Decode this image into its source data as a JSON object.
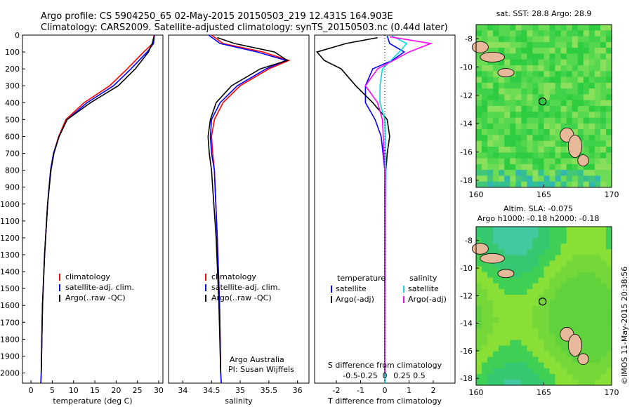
{
  "header": {
    "line1": "Argo profile: CS 5904250_65 02-May-2015 20150503_219 12.431S 164.903E",
    "line2": "Climatology: CARS2009. Satellite-adjusted climatology: synTS_20150503.nc (0.44d later)"
  },
  "depth_ticks": [
    "0",
    "100",
    "200",
    "300",
    "400",
    "500",
    "600",
    "700",
    "800",
    "900",
    "1000",
    "1100",
    "1200",
    "1300",
    "1400",
    "1500",
    "1600",
    "1700",
    "1800",
    "1900",
    "2000"
  ],
  "colors": {
    "climatology": "#ff0000",
    "satellite": "#0000ff",
    "argo": "#000000",
    "sal_sat": "#00e0e0",
    "sal_argo": "#ff00ff"
  },
  "chart_data": [
    {
      "type": "line",
      "id": "temperature",
      "xlabel": "temperature (deg C)",
      "xlim": [
        -2,
        31
      ],
      "ylim": [
        0,
        2060
      ],
      "x_ticks": [
        "0",
        "5",
        "10",
        "15",
        "20",
        "25",
        "30"
      ],
      "legend": [
        "climatology",
        "satellite-adj. clim.",
        "Argo(..raw -QC)"
      ],
      "series": [
        {
          "name": "climatology",
          "points": [
            [
              28.9,
              0
            ],
            [
              28.6,
              50
            ],
            [
              26.5,
              100
            ],
            [
              22.6,
              200
            ],
            [
              18.5,
              300
            ],
            [
              12.5,
              400
            ],
            [
              8.2,
              500
            ],
            [
              6.5,
              600
            ],
            [
              5.3,
              700
            ],
            [
              4.6,
              800
            ],
            [
              3.9,
              1000
            ],
            [
              3.2,
              1300
            ],
            [
              2.7,
              1600
            ],
            [
              2.4,
              2000
            ],
            [
              2.3,
              2060
            ]
          ]
        },
        {
          "name": "satellite-adj. clim.",
          "points": [
            [
              29.0,
              0
            ],
            [
              28.8,
              50
            ],
            [
              27.3,
              100
            ],
            [
              23.5,
              200
            ],
            [
              19.4,
              300
            ],
            [
              13.2,
              400
            ],
            [
              8.5,
              500
            ],
            [
              6.6,
              600
            ],
            [
              5.3,
              700
            ],
            [
              4.6,
              800
            ],
            [
              3.9,
              1000
            ],
            [
              3.2,
              1300
            ],
            [
              2.7,
              1600
            ],
            [
              2.4,
              2000
            ],
            [
              2.3,
              2060
            ]
          ]
        },
        {
          "name": "Argo(..raw -QC)",
          "points": [
            [
              28.9,
              8
            ],
            [
              28.5,
              50
            ],
            [
              27.6,
              100
            ],
            [
              24.5,
              200
            ],
            [
              20.5,
              300
            ],
            [
              14.0,
              400
            ],
            [
              8.5,
              500
            ],
            [
              6.6,
              600
            ],
            [
              5.4,
              700
            ],
            [
              4.7,
              800
            ],
            [
              3.9,
              1000
            ],
            [
              3.2,
              1300
            ],
            [
              2.7,
              1600
            ],
            [
              2.4,
              2000
            ]
          ]
        }
      ]
    },
    {
      "type": "line",
      "id": "salinity",
      "xlabel": "salinity",
      "xlim": [
        33.75,
        36.2
      ],
      "ylim": [
        0,
        2060
      ],
      "x_ticks": [
        "34",
        "34.5",
        "35",
        "35.5",
        "36"
      ],
      "legend": [
        "climatology",
        "satellite-adj. clim.",
        "Argo(..raw -QC)"
      ],
      "series": [
        {
          "name": "climatology",
          "points": [
            [
              34.5,
              0
            ],
            [
              34.7,
              50
            ],
            [
              35.4,
              100
            ],
            [
              35.85,
              150
            ],
            [
              35.5,
              200
            ],
            [
              35.0,
              300
            ],
            [
              34.7,
              400
            ],
            [
              34.55,
              500
            ],
            [
              34.5,
              600
            ],
            [
              34.52,
              700
            ],
            [
              34.55,
              800
            ],
            [
              34.6,
              1200
            ],
            [
              34.64,
              1600
            ],
            [
              34.66,
              2000
            ],
            [
              34.67,
              2060
            ]
          ]
        },
        {
          "name": "satellite-adj. clim.",
          "points": [
            [
              34.45,
              0
            ],
            [
              34.65,
              50
            ],
            [
              35.3,
              100
            ],
            [
              35.8,
              150
            ],
            [
              35.45,
              200
            ],
            [
              34.95,
              300
            ],
            [
              34.65,
              400
            ],
            [
              34.5,
              500
            ],
            [
              34.48,
              600
            ],
            [
              34.5,
              700
            ],
            [
              34.55,
              800
            ],
            [
              34.6,
              1200
            ],
            [
              34.64,
              1600
            ],
            [
              34.66,
              2000
            ],
            [
              34.67,
              2060
            ]
          ]
        },
        {
          "name": "Argo(..raw -QC)",
          "points": [
            [
              34.6,
              15
            ],
            [
              34.9,
              50
            ],
            [
              35.6,
              100
            ],
            [
              35.82,
              150
            ],
            [
              35.35,
              200
            ],
            [
              34.85,
              300
            ],
            [
              34.58,
              400
            ],
            [
              34.48,
              500
            ],
            [
              34.44,
              600
            ],
            [
              34.46,
              700
            ],
            [
              34.5,
              800
            ],
            [
              34.58,
              1200
            ],
            [
              34.63,
              1600
            ],
            [
              34.66,
              2000
            ]
          ]
        }
      ],
      "annotation": [
        "Argo Australia",
        "PI: Susan Wijffels"
      ]
    },
    {
      "type": "line",
      "id": "differences",
      "xlabel": "T difference from climatology",
      "xlabel_top": "S difference from climatology",
      "xlim": [
        -2.9,
        2.9
      ],
      "ylim": [
        0,
        2060
      ],
      "x_ticks": [
        "-2",
        "-1",
        "0",
        "1",
        "2"
      ],
      "x_ticks_top": [
        "-0.5",
        "-0.25",
        "0",
        "0.25",
        "0.5"
      ],
      "legend_temperature": [
        "temperature",
        "satellite",
        "Argo(-adj)"
      ],
      "legend_salinity": [
        "salinity",
        "satellite",
        "Argo(-adj)"
      ],
      "series": [
        {
          "name": "T satellite",
          "points": [
            [
              0.1,
              5
            ],
            [
              0.2,
              50
            ],
            [
              0.8,
              100
            ],
            [
              0.3,
              150
            ],
            [
              -0.5,
              200
            ],
            [
              -0.8,
              300
            ],
            [
              -0.8,
              400
            ],
            [
              -0.4,
              500
            ],
            [
              -0.15,
              600
            ],
            [
              0,
              800
            ],
            [
              0,
              2060
            ]
          ]
        },
        {
          "name": "T Argo(-adj)",
          "points": [
            [
              -0.3,
              15
            ],
            [
              -1.6,
              50
            ],
            [
              -2.8,
              100
            ],
            [
              -2.5,
              150
            ],
            [
              -1.8,
              200
            ],
            [
              -1.2,
              300
            ],
            [
              -0.5,
              400
            ],
            [
              0.1,
              500
            ],
            [
              0.2,
              600
            ],
            [
              0.1,
              700
            ],
            [
              0,
              900
            ],
            [
              0,
              2000
            ]
          ]
        },
        {
          "name": "S satellite",
          "points": [
            [
              0.3,
              5
            ],
            [
              0.9,
              50
            ],
            [
              0.6,
              100
            ],
            [
              -0.1,
              200
            ],
            [
              -0.2,
              300
            ],
            [
              -0.2,
              400
            ],
            [
              0,
              500
            ],
            [
              0.05,
              800
            ],
            [
              0,
              2060
            ]
          ]
        },
        {
          "name": "S Argo(-adj)",
          "points": [
            [
              0.2,
              10
            ],
            [
              1.9,
              50
            ],
            [
              1.0,
              100
            ],
            [
              -0.3,
              200
            ],
            [
              -0.8,
              300
            ],
            [
              -0.3,
              400
            ],
            [
              -0.1,
              500
            ],
            [
              0,
              800
            ],
            [
              0,
              2000
            ]
          ]
        }
      ]
    },
    {
      "type": "heatmap",
      "id": "sst-map",
      "title": "sat. SST: 28.8 Argo: 28.9",
      "xlim": [
        160,
        170
      ],
      "ylim": [
        -18.5,
        -7
      ],
      "x_ticks": [
        "160",
        "165",
        "170"
      ],
      "y_ticks": [
        "-8",
        "-10",
        "-12",
        "-14",
        "-16",
        "-18"
      ],
      "marker": [
        164.903,
        -12.431
      ]
    },
    {
      "type": "heatmap",
      "id": "sla-map",
      "title_line1": "Altim. SLA: -0.075",
      "title_line2": "Argo h1000: -0.18 h2000: -0.18",
      "xlim": [
        160,
        170
      ],
      "ylim": [
        -18.5,
        -7
      ],
      "x_ticks": [
        "160",
        "165",
        "170"
      ],
      "y_ticks": [
        "-8",
        "-10",
        "-12",
        "-14",
        "-16",
        "-18"
      ],
      "marker": [
        164.903,
        -12.431
      ]
    }
  ],
  "stamp": "©IMOS 11-May-2015 20:38:56"
}
